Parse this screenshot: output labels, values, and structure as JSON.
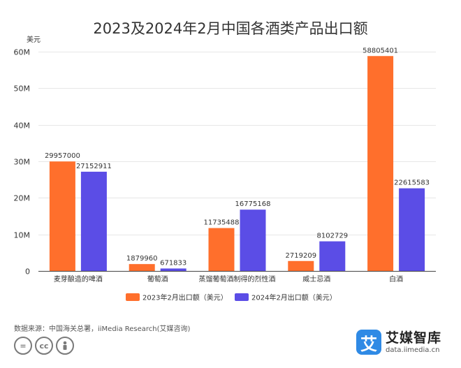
{
  "chart_data": {
    "type": "bar",
    "title": "2023及2024年2月中国各酒类产品出口额",
    "ylabel": "美元",
    "yticks": [
      "0",
      "10M",
      "20M",
      "30M",
      "40M",
      "50M",
      "60M"
    ],
    "ylim": [
      0,
      60000000
    ],
    "categories": [
      "麦芽酿造的啤酒",
      "葡萄酒",
      "蒸馏葡萄酒制得的烈性酒",
      "威士忌酒",
      "白酒"
    ],
    "series": [
      {
        "name": "2023年2月出口额（美元）",
        "color": "#ff6f2c",
        "values": [
          29957000,
          1879960,
          11735488,
          2719209,
          58805401
        ]
      },
      {
        "name": "2024年2月出口额（美元）",
        "color": "#5b4de6",
        "values": [
          27152911,
          671833,
          16775168,
          8102729,
          22615583
        ]
      }
    ],
    "grid": true,
    "legend_position": "bottom"
  },
  "footer": {
    "source": "数据来源：中国海关总署，iiMedia Research(艾媒咨询)",
    "license_icons": [
      "=",
      "cc",
      "person-icon"
    ],
    "brand_logo_char": "艾",
    "brand_name": "艾媒智库",
    "brand_url": "data.iimedia.cn"
  }
}
